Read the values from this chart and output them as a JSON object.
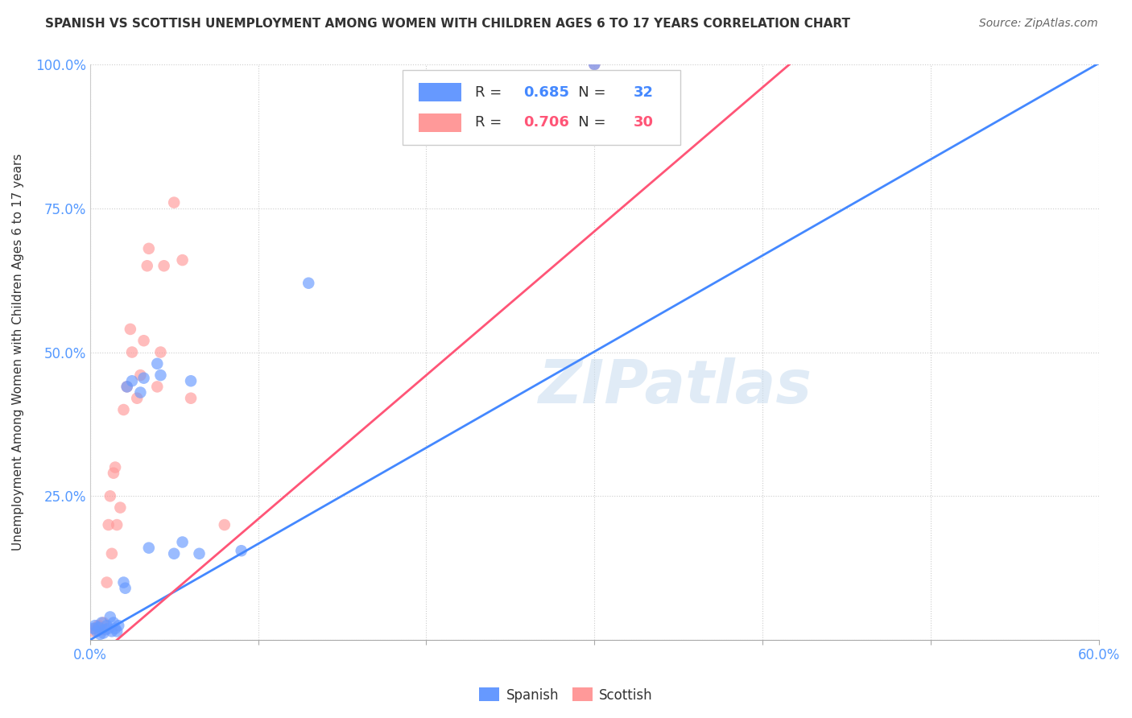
{
  "title": "SPANISH VS SCOTTISH UNEMPLOYMENT AMONG WOMEN WITH CHILDREN AGES 6 TO 17 YEARS CORRELATION CHART",
  "source": "Source: ZipAtlas.com",
  "ylabel": "Unemployment Among Women with Children Ages 6 to 17 years",
  "xlim": [
    0.0,
    0.6
  ],
  "ylim": [
    0.0,
    1.0
  ],
  "xticks": [
    0.0,
    0.1,
    0.2,
    0.3,
    0.4,
    0.5,
    0.6
  ],
  "xticklabels": [
    "0.0%",
    "",
    "",
    "",
    "",
    "",
    "60.0%"
  ],
  "yticks": [
    0.0,
    0.25,
    0.5,
    0.75,
    1.0
  ],
  "yticklabels": [
    "",
    "25.0%",
    "50.0%",
    "75.0%",
    "100.0%"
  ],
  "watermark": "ZIPatlas",
  "spanish_R": 0.685,
  "spanish_N": 32,
  "scottish_R": 0.706,
  "scottish_N": 30,
  "spanish_color": "#6699FF",
  "scottish_color": "#FF9999",
  "spanish_line_color": "#4488FF",
  "scottish_line_color": "#FF5577",
  "background_color": "#FFFFFF",
  "grid_color": "#CCCCCC",
  "title_color": "#333333",
  "tick_label_color": "#5599FF",
  "spanish_line_slope": 1.67,
  "spanish_line_intercept": 0.0,
  "scottish_line_slope": 2.5,
  "scottish_line_intercept": -0.04,
  "spanish_x": [
    0.002,
    0.003,
    0.004,
    0.005,
    0.006,
    0.007,
    0.008,
    0.009,
    0.01,
    0.011,
    0.012,
    0.013,
    0.014,
    0.015,
    0.016,
    0.017,
    0.02,
    0.021,
    0.022,
    0.025,
    0.03,
    0.032,
    0.035,
    0.04,
    0.042,
    0.05,
    0.055,
    0.06,
    0.065,
    0.09,
    0.13,
    0.3
  ],
  "spanish_y": [
    0.02,
    0.025,
    0.015,
    0.022,
    0.01,
    0.03,
    0.012,
    0.018,
    0.025,
    0.02,
    0.04,
    0.015,
    0.03,
    0.02,
    0.015,
    0.025,
    0.1,
    0.09,
    0.44,
    0.45,
    0.43,
    0.455,
    0.16,
    0.48,
    0.46,
    0.15,
    0.17,
    0.45,
    0.15,
    0.155,
    0.62,
    1.0
  ],
  "scottish_x": [
    0.002,
    0.003,
    0.005,
    0.007,
    0.008,
    0.01,
    0.011,
    0.012,
    0.013,
    0.014,
    0.015,
    0.016,
    0.018,
    0.02,
    0.022,
    0.024,
    0.025,
    0.028,
    0.03,
    0.032,
    0.034,
    0.035,
    0.04,
    0.042,
    0.044,
    0.05,
    0.055,
    0.06,
    0.08,
    0.3
  ],
  "scottish_y": [
    0.015,
    0.02,
    0.025,
    0.018,
    0.03,
    0.1,
    0.2,
    0.25,
    0.15,
    0.29,
    0.3,
    0.2,
    0.23,
    0.4,
    0.44,
    0.54,
    0.5,
    0.42,
    0.46,
    0.52,
    0.65,
    0.68,
    0.44,
    0.5,
    0.65,
    0.76,
    0.66,
    0.42,
    0.2,
    1.0
  ]
}
